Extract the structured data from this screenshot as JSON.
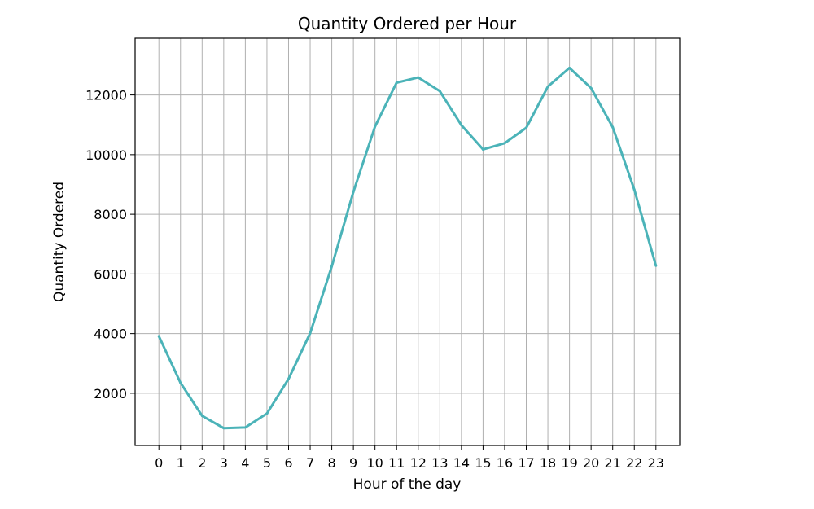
{
  "chart_data": {
    "type": "line",
    "title": "Quantity Ordered per Hour",
    "xlabel": "Hour of the day",
    "ylabel": "Quantity Ordered",
    "categories": [
      "0",
      "1",
      "2",
      "3",
      "4",
      "5",
      "6",
      "7",
      "8",
      "9",
      "10",
      "11",
      "12",
      "13",
      "14",
      "15",
      "16",
      "17",
      "18",
      "19",
      "20",
      "21",
      "22",
      "23"
    ],
    "series": [
      {
        "name": "Quantity Ordered",
        "color": "#4bb3b8",
        "values": [
          3910,
          2350,
          1243,
          831,
          854,
          1321,
          2482,
          4011,
          6256,
          8748,
          10944,
          12411,
          12587,
          12129,
          10984,
          10175,
          10384,
          10899,
          12280,
          12905,
          12228,
          10921,
          8822,
          6275
        ]
      }
    ],
    "ylim": [
      250,
      13900
    ],
    "yticks": [
      2000,
      4000,
      6000,
      8000,
      10000,
      12000
    ],
    "xlim": [
      -1.1,
      24.1
    ],
    "grid": true,
    "legend": "none"
  }
}
